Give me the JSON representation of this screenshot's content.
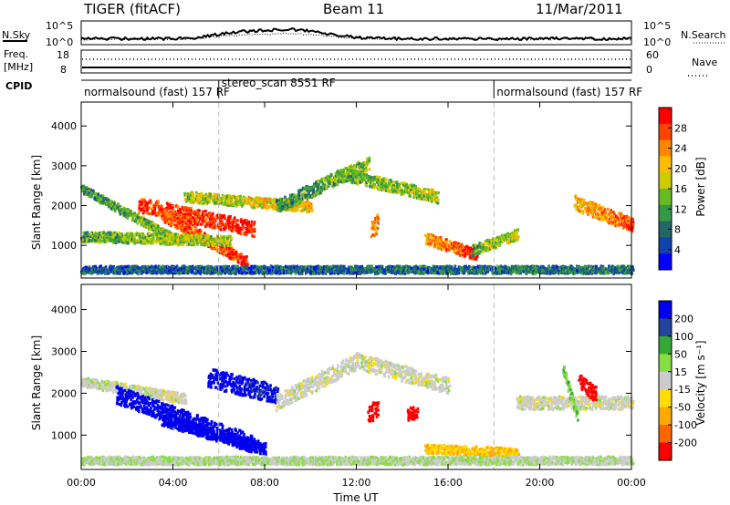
{
  "header": {
    "radar": "TIGER (fitACF)",
    "beam": "Beam 11",
    "date": "11/Mar/2011"
  },
  "strip": {
    "nsky_label": "N.Sky",
    "nsky_ticks": [
      "10^5",
      "10^0"
    ],
    "nsearch_label": "N.Search",
    "nsearch_ticks": [
      "10^5",
      "10^0"
    ],
    "freq_label_1": "Freq.",
    "freq_label_2": "[MHz]",
    "freq_ticks": [
      "18",
      "8"
    ],
    "nave_label": "Nave",
    "nave_ticks": [
      "60",
      "0"
    ],
    "cpid_label": "CPID",
    "modes": [
      {
        "label": "normalsound (fast) 157 RF",
        "start_hour": 0,
        "end_hour": 6
      },
      {
        "label": "stereo_scan 8551 RF",
        "start_hour": 6,
        "end_hour": 18
      },
      {
        "label": "normalsound (fast) 157 RF",
        "start_hour": 18,
        "end_hour": 24
      }
    ]
  },
  "axes": {
    "x_ticks": [
      "00:00",
      "04:00",
      "08:00",
      "12:00",
      "16:00",
      "20:00",
      "00:00"
    ],
    "x_tick_hours": [
      0,
      4,
      8,
      12,
      16,
      20,
      24
    ],
    "xlabel": "Time UT",
    "ylabel": "Slant Range [km]",
    "y_ticks": [
      "4000",
      "3000",
      "2000",
      "1000"
    ],
    "y_tick_values": [
      4000,
      3000,
      2000,
      1000
    ],
    "ylim": [
      180,
      4600
    ],
    "xlim_hours": [
      0,
      24
    ]
  },
  "colorbars": {
    "power": {
      "label": "Power [dB]",
      "ticks": [
        "28",
        "24",
        "20",
        "16",
        "12",
        "8",
        "4"
      ],
      "colors": [
        "#ff0000",
        "#ff4400",
        "#ff8800",
        "#ffbb00",
        "#cccc00",
        "#66bb22",
        "#339944",
        "#226666",
        "#1144aa",
        "#0000ff"
      ]
    },
    "velocity": {
      "label": "Velocity [m s⁻¹]",
      "ticks": [
        "200",
        "100",
        "50",
        "15",
        "-15",
        "-50",
        "-100",
        "-200"
      ],
      "colors": [
        "#0000ee",
        "#224499",
        "#33aa33",
        "#88dd44",
        "#cccccc",
        "#ffdd00",
        "#ffaa00",
        "#ff6600",
        "#ff0000"
      ]
    }
  },
  "chart_data": [
    {
      "type": "heatmap",
      "title": "Power",
      "xlabel": "Time UT",
      "ylabel": "Slant Range [km]",
      "xlim": [
        0,
        24
      ],
      "ylim": [
        180,
        4600
      ],
      "value_label": "Power [dB]",
      "value_range": [
        0,
        30
      ],
      "bands": [
        {
          "t0": 0.0,
          "t1": 4.2,
          "r0": 2450,
          "r1": 1150,
          "w": 180,
          "v0": 10,
          "v1": 14
        },
        {
          "t0": 2.5,
          "t1": 7.5,
          "r0": 2050,
          "r1": 1450,
          "w": 320,
          "v0": 26,
          "v1": 28
        },
        {
          "t0": 3.5,
          "t1": 7.2,
          "r0": 1800,
          "r1": 600,
          "w": 240,
          "v0": 24,
          "v1": 27
        },
        {
          "t0": 0.0,
          "t1": 6.5,
          "r0": 1250,
          "r1": 1150,
          "w": 220,
          "v0": 12,
          "v1": 16
        },
        {
          "t0": 4.5,
          "t1": 10.0,
          "r0": 2250,
          "r1": 2000,
          "w": 220,
          "v0": 14,
          "v1": 20
        },
        {
          "t0": 8.5,
          "t1": 12.5,
          "r0": 2000,
          "r1": 3100,
          "w": 280,
          "v0": 10,
          "v1": 14
        },
        {
          "t0": 11.5,
          "t1": 15.5,
          "r0": 2800,
          "r1": 2250,
          "w": 260,
          "v0": 12,
          "v1": 16
        },
        {
          "t0": 15.0,
          "t1": 17.2,
          "r0": 1200,
          "r1": 800,
          "w": 240,
          "v0": 20,
          "v1": 28
        },
        {
          "t0": 17.0,
          "t1": 19.0,
          "r0": 900,
          "r1": 1300,
          "w": 220,
          "v0": 12,
          "v1": 16
        },
        {
          "t0": 21.5,
          "t1": 24.0,
          "r0": 2100,
          "r1": 1550,
          "w": 300,
          "v0": 20,
          "v1": 26
        },
        {
          "t0": 0.0,
          "t1": 24.0,
          "r0": 420,
          "r1": 420,
          "w": 160,
          "v0": 6,
          "v1": 8
        },
        {
          "t0": 12.6,
          "t1": 12.9,
          "r0": 1400,
          "r1": 1600,
          "w": 380,
          "v0": 22,
          "v1": 24
        }
      ]
    },
    {
      "type": "heatmap",
      "title": "Velocity",
      "xlabel": "Time UT",
      "ylabel": "Slant Range [km]",
      "xlim": [
        0,
        24
      ],
      "ylim": [
        180,
        4600
      ],
      "value_label": "Velocity [m s⁻¹]",
      "value_range": [
        -200,
        200
      ],
      "bands": [
        {
          "t0": 0.0,
          "t1": 4.5,
          "r0": 2300,
          "r1": 1900,
          "w": 200,
          "v0": 0,
          "v1": 0
        },
        {
          "t0": 1.5,
          "t1": 7.5,
          "r0": 2000,
          "r1": 800,
          "w": 360,
          "v0": 210,
          "v1": 200
        },
        {
          "t0": 3.5,
          "t1": 8.0,
          "r0": 1400,
          "r1": 700,
          "w": 240,
          "v0": 180,
          "v1": 200
        },
        {
          "t0": 5.5,
          "t1": 8.5,
          "r0": 2400,
          "r1": 2000,
          "w": 380,
          "v0": 200,
          "v1": 160
        },
        {
          "t0": 8.5,
          "t1": 12.0,
          "r0": 1800,
          "r1": 2800,
          "w": 320,
          "v0": 0,
          "v1": 0
        },
        {
          "t0": 12.0,
          "t1": 16.0,
          "r0": 2800,
          "r1": 2200,
          "w": 320,
          "v0": 0,
          "v1": 0
        },
        {
          "t0": 15.0,
          "t1": 19.0,
          "r0": 700,
          "r1": 600,
          "w": 180,
          "v0": -60,
          "v1": -70
        },
        {
          "t0": 19.0,
          "t1": 24.0,
          "r0": 1800,
          "r1": 1800,
          "w": 260,
          "v0": 0,
          "v1": 0
        },
        {
          "t0": 0.0,
          "t1": 24.0,
          "r0": 420,
          "r1": 420,
          "w": 160,
          "v0": 20,
          "v1": 15
        },
        {
          "t0": 21.0,
          "t1": 21.6,
          "r0": 2600,
          "r1": 1500,
          "w": 200,
          "v0": 60,
          "v1": 60
        },
        {
          "t0": 21.7,
          "t1": 22.4,
          "r0": 2300,
          "r1": 2000,
          "w": 300,
          "v0": -220,
          "v1": -200
        },
        {
          "t0": 12.5,
          "t1": 12.9,
          "r0": 1500,
          "r1": 1700,
          "w": 350,
          "v0": -200,
          "v1": -180
        },
        {
          "t0": 14.2,
          "t1": 14.6,
          "r0": 1500,
          "r1": 1600,
          "w": 260,
          "v0": -200,
          "v1": -200
        }
      ]
    }
  ]
}
